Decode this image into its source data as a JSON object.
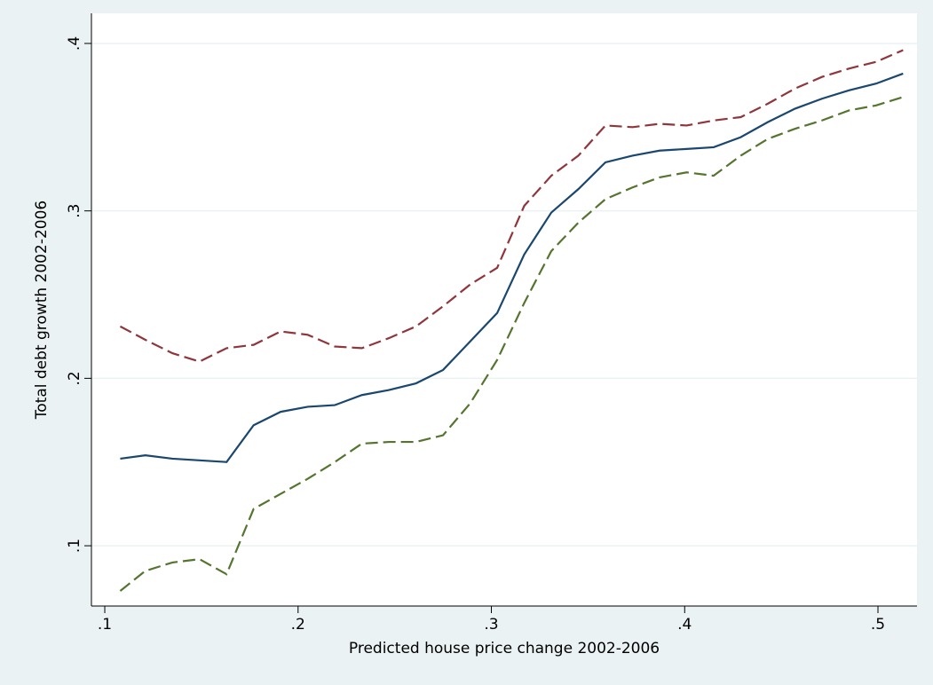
{
  "chart_data": {
    "type": "line",
    "xlabel": "Predicted house price change 2002-2006",
    "ylabel": "Total debt growth 2002-2006",
    "x": [
      0.108,
      0.121,
      0.135,
      0.149,
      0.163,
      0.177,
      0.191,
      0.205,
      0.219,
      0.233,
      0.247,
      0.261,
      0.275,
      0.289,
      0.303,
      0.317,
      0.331,
      0.345,
      0.359,
      0.373,
      0.387,
      0.401,
      0.415,
      0.429,
      0.443,
      0.457,
      0.471,
      0.485,
      0.499,
      0.513
    ],
    "series": [
      {
        "color": "#1a476f",
        "dashed": false,
        "values": [
          0.152,
          0.154,
          0.152,
          0.151,
          0.15,
          0.172,
          0.18,
          0.183,
          0.184,
          0.19,
          0.193,
          0.197,
          0.205,
          0.222,
          0.239,
          0.274,
          0.299,
          0.313,
          0.329,
          0.333,
          0.336,
          0.337,
          0.338,
          0.344,
          0.353,
          0.361,
          0.367,
          0.372,
          0.376,
          0.382
        ]
      },
      {
        "color": "#90353b",
        "dashed": true,
        "values": [
          0.231,
          0.223,
          0.215,
          0.21,
          0.218,
          0.22,
          0.228,
          0.226,
          0.219,
          0.218,
          0.224,
          0.231,
          0.243,
          0.256,
          0.266,
          0.303,
          0.321,
          0.333,
          0.351,
          0.35,
          0.352,
          0.351,
          0.354,
          0.356,
          0.364,
          0.373,
          0.38,
          0.385,
          0.389,
          0.396
        ]
      },
      {
        "color": "#55752f",
        "dashed": true,
        "values": [
          0.073,
          0.085,
          0.09,
          0.092,
          0.083,
          0.122,
          0.131,
          0.14,
          0.15,
          0.161,
          0.162,
          0.162,
          0.166,
          0.185,
          0.211,
          0.245,
          0.276,
          0.293,
          0.307,
          0.314,
          0.32,
          0.323,
          0.321,
          0.333,
          0.343,
          0.349,
          0.354,
          0.36,
          0.363,
          0.368
        ]
      }
    ],
    "xlim": [
      0.0931,
      0.5202
    ],
    "ylim": [
      0.064,
      0.418
    ],
    "xticks": [
      {
        "value": 0.1,
        "label": ".1"
      },
      {
        "value": 0.2,
        "label": ".2"
      },
      {
        "value": 0.3,
        "label": ".3"
      },
      {
        "value": 0.4,
        "label": ".4"
      },
      {
        "value": 0.5,
        "label": ".5"
      }
    ],
    "yticks": [
      {
        "value": 0.1,
        "label": ".1"
      },
      {
        "value": 0.2,
        "label": ".2"
      },
      {
        "value": 0.3,
        "label": ".3"
      },
      {
        "value": 0.4,
        "label": ".4"
      }
    ],
    "grid": true
  }
}
